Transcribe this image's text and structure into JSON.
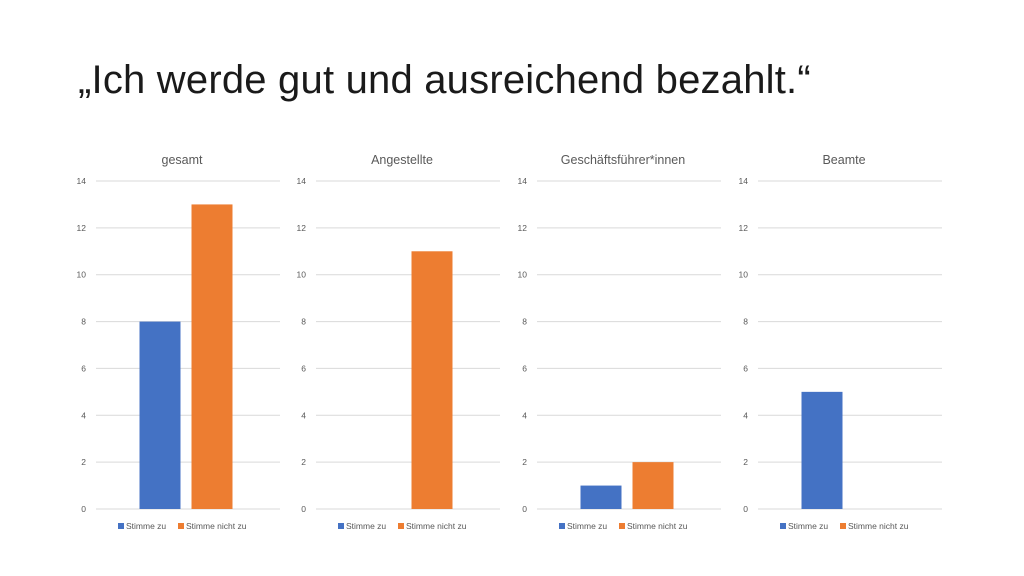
{
  "slide": {
    "title": "„Ich werde gut und ausreichend bezahlt.“"
  },
  "colors": {
    "series_1": "#4472C4",
    "series_2": "#ED7D31",
    "gridline": "#d9d9d9",
    "text": "#595959"
  },
  "chart_data": [
    {
      "type": "bar",
      "title": "gesamt",
      "categories": [
        "Stimme zu",
        "Stimme nicht zu"
      ],
      "values": [
        8,
        13
      ],
      "ylim": [
        0,
        14
      ],
      "yticks": [
        0,
        2,
        4,
        6,
        8,
        10,
        12,
        14
      ],
      "grid": true,
      "legend": "bottom",
      "legend_entries": [
        "Stimme zu",
        "Stimme nicht zu"
      ]
    },
    {
      "type": "bar",
      "title": "Angestellte",
      "categories": [
        "Stimme zu",
        "Stimme nicht zu"
      ],
      "values": [
        0,
        11
      ],
      "ylim": [
        0,
        14
      ],
      "yticks": [
        0,
        2,
        4,
        6,
        8,
        10,
        12,
        14
      ],
      "grid": true,
      "legend": "bottom",
      "legend_entries": [
        "Stimme zu",
        "Stimme nicht zu"
      ]
    },
    {
      "type": "bar",
      "title": "Geschäftsführer*innen",
      "categories": [
        "Stimme zu",
        "Stimme nicht zu"
      ],
      "values": [
        1,
        2
      ],
      "ylim": [
        0,
        14
      ],
      "yticks": [
        0,
        2,
        4,
        6,
        8,
        10,
        12,
        14
      ],
      "grid": true,
      "legend": "bottom",
      "legend_entries": [
        "Stimme zu",
        "Stimme nicht zu"
      ]
    },
    {
      "type": "bar",
      "title": "Beamte",
      "categories": [
        "Stimme zu",
        "Stimme nicht zu"
      ],
      "values": [
        5,
        0
      ],
      "ylim": [
        0,
        14
      ],
      "yticks": [
        0,
        2,
        4,
        6,
        8,
        10,
        12,
        14
      ],
      "grid": true,
      "legend": "bottom",
      "legend_entries": [
        "Stimme zu",
        "Stimme nicht zu"
      ]
    }
  ]
}
